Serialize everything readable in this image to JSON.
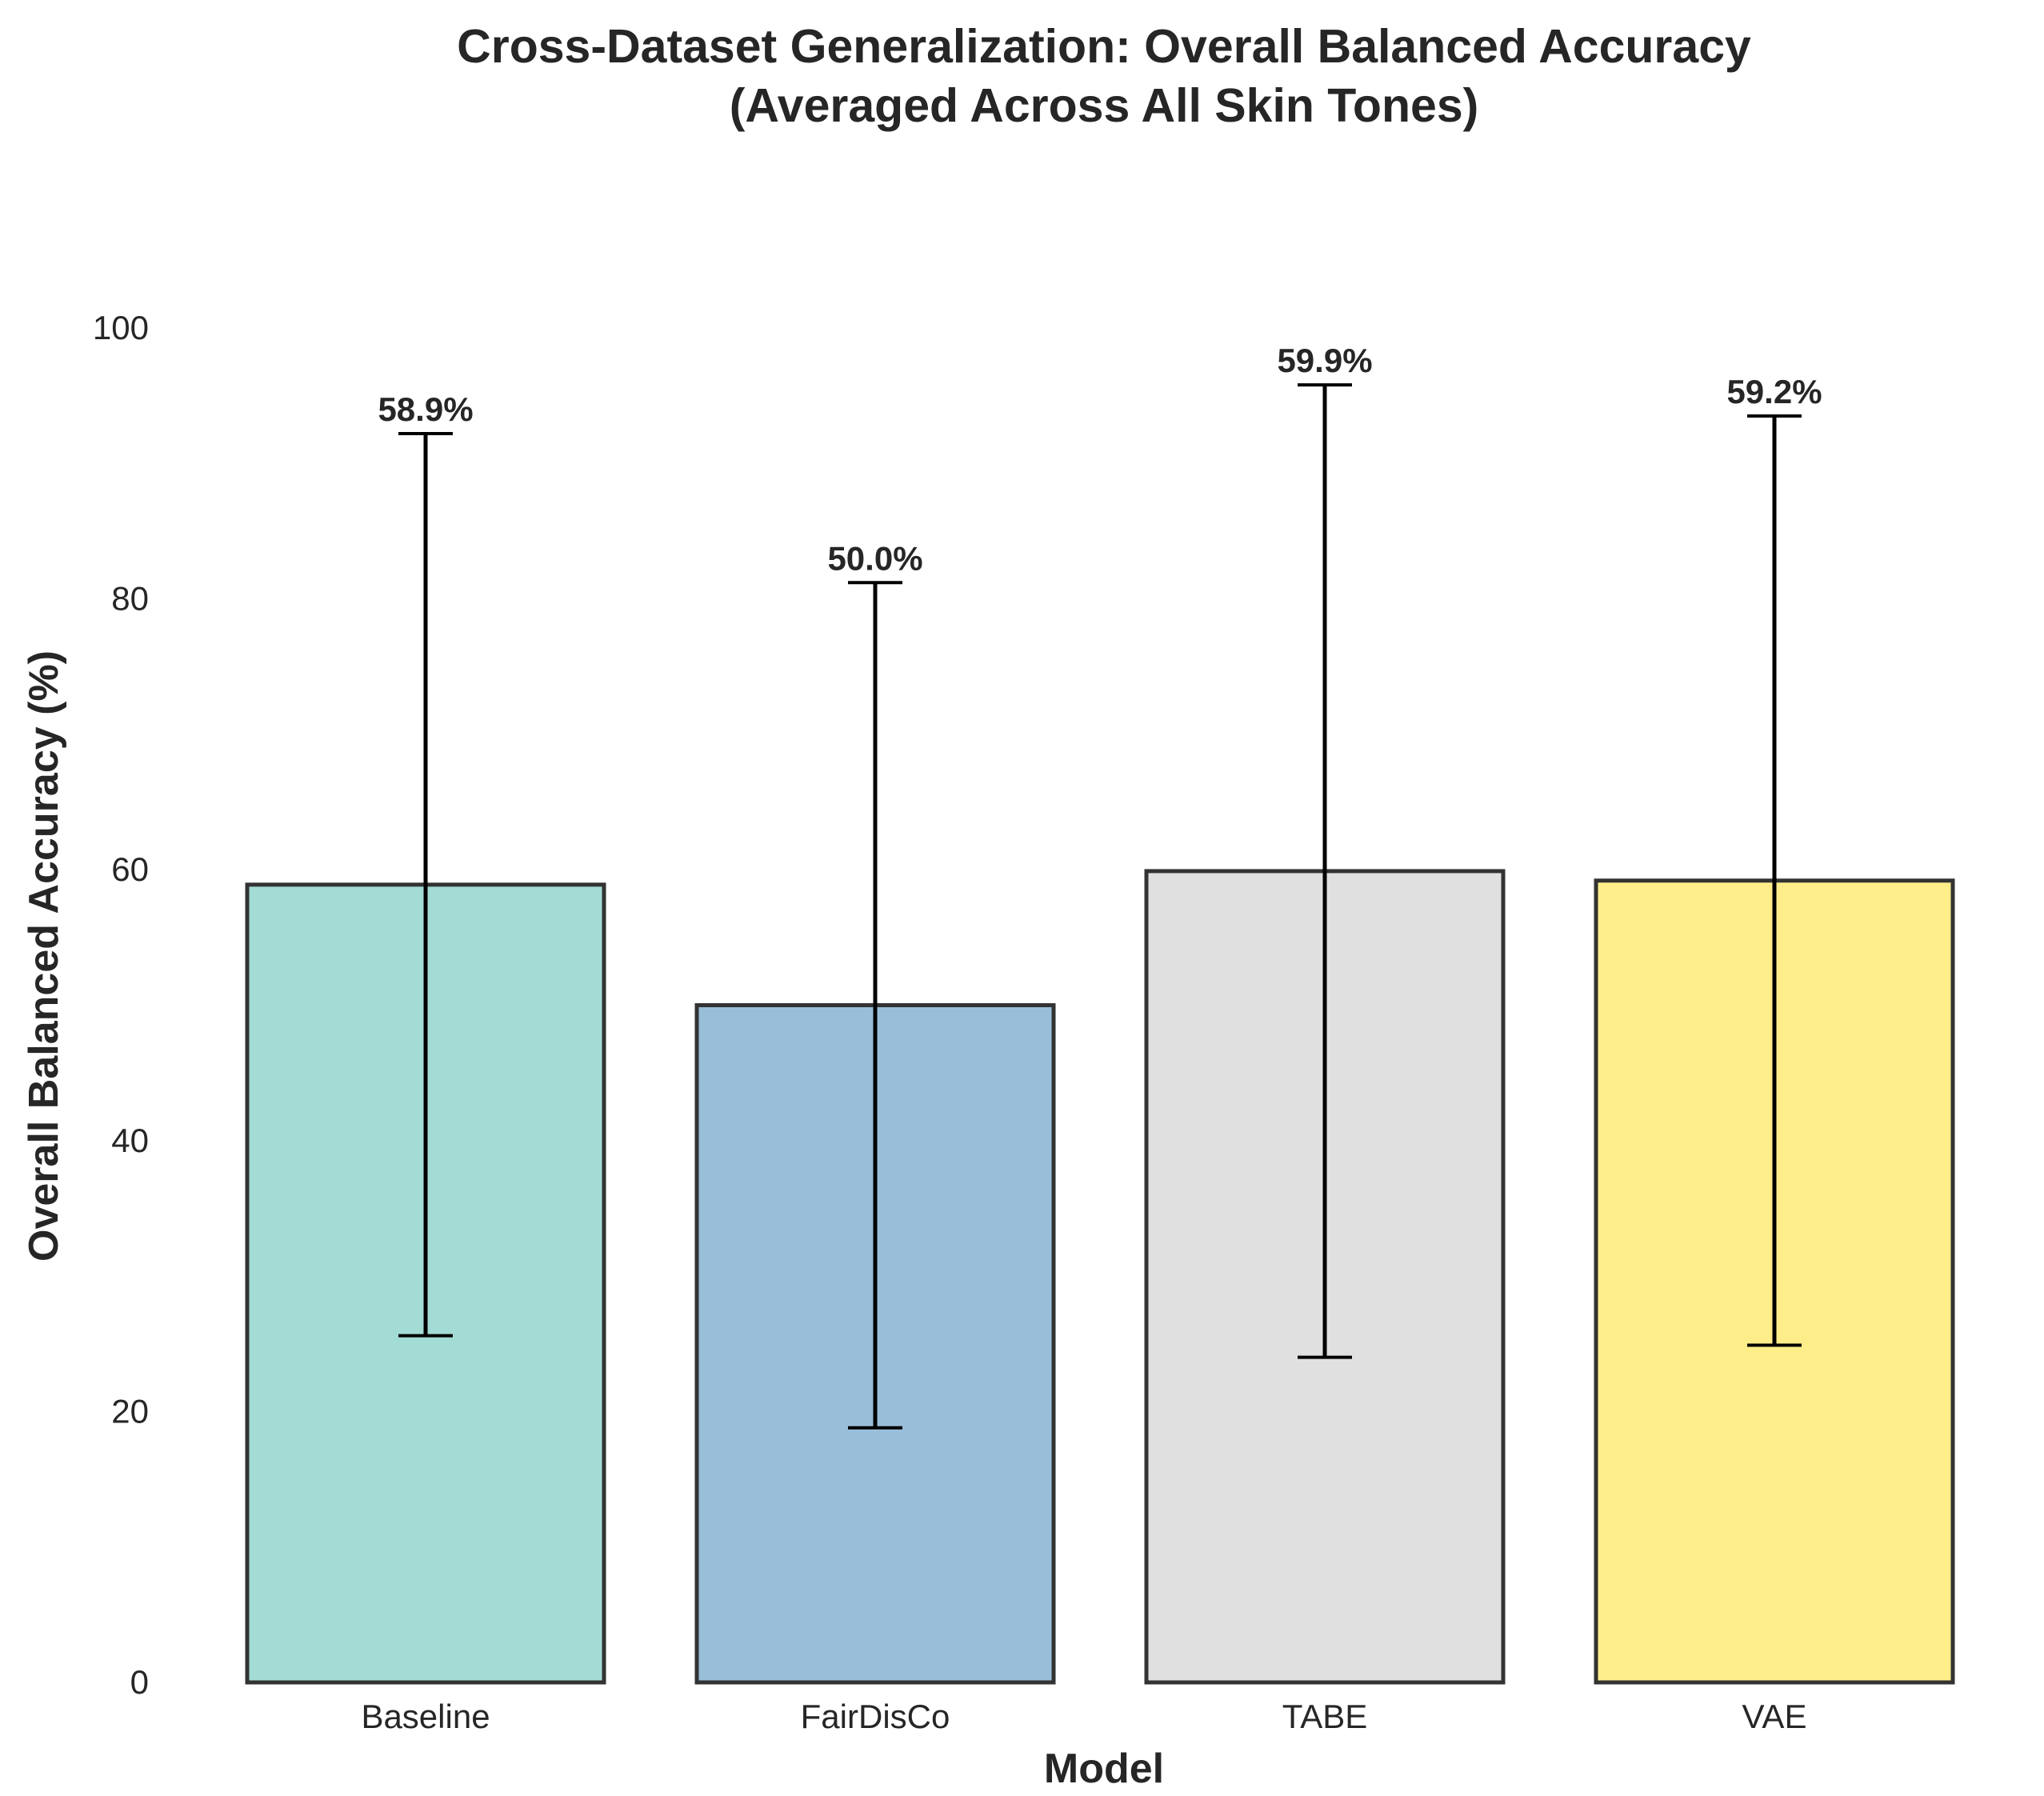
{
  "chart_data": {
    "type": "bar",
    "title_lines": [
      "Cross-Dataset Generalization: Overall Balanced Accuracy",
      "(Averaged Across All Skin Tones)"
    ],
    "xlabel": "Model",
    "ylabel": "Overall Balanced Accuracy (%)",
    "categories": [
      "Baseline",
      "FairDisCo",
      "TABE",
      "VAE"
    ],
    "values": [
      58.9,
      50.0,
      59.9,
      59.2
    ],
    "error": [
      33.3,
      31.2,
      35.9,
      34.3
    ],
    "value_labels": [
      "58.9%",
      "50.0%",
      "59.9%",
      "59.2%"
    ],
    "colors": [
      "#a3dcd4",
      "#99bed9",
      "#e0e0e0",
      "#fdee8a"
    ],
    "edge_color": "#333333",
    "error_color": "#000000",
    "ylim": [
      0,
      100
    ],
    "yticks": [
      0,
      20,
      40,
      60,
      80,
      100
    ],
    "ytick_labels": [
      "0",
      "20",
      "40",
      "60",
      "80",
      "100"
    ],
    "grid": false,
    "legend": "none"
  }
}
